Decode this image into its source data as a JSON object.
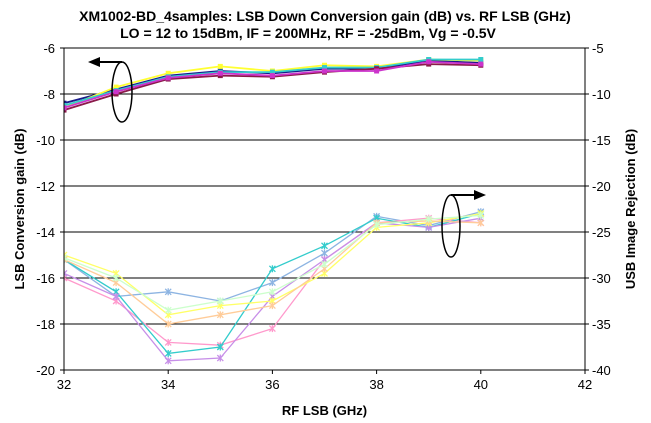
{
  "chart_data": {
    "type": "line",
    "title": "XM1002-BD_4samples: LSB Down Conversion gain (dB) vs. RF LSB (GHz)",
    "subtitle": "LO = 12 to 15dBm, IF = 200MHz, RF  = -25dBm, Vg = -0.5V",
    "xlabel": "RF LSB (GHz)",
    "ylabel": "LSB Conversion gain (dB)",
    "y2label": "USB Image Rejection (dB)",
    "xlim": [
      32,
      42
    ],
    "ylim": [
      -20,
      -6
    ],
    "y2lim": [
      -40,
      -5
    ],
    "x_ticks": [
      32,
      34,
      36,
      38,
      40,
      42
    ],
    "y_ticks": [
      -6,
      -8,
      -10,
      -12,
      -14,
      -16,
      -18,
      -20
    ],
    "y2_ticks": [
      -5,
      -10,
      -15,
      -20,
      -25,
      -30,
      -35,
      -40
    ],
    "grid": "horizontal",
    "gain_series": [
      {
        "axis": "left",
        "color": "#1a1a8c",
        "x": [
          32,
          33,
          34,
          35,
          36,
          37,
          38,
          39,
          40
        ],
        "y": [
          -8.4,
          -7.8,
          -7.2,
          -7.0,
          -7.1,
          -6.9,
          -6.9,
          -6.55,
          -6.65
        ]
      },
      {
        "axis": "left",
        "color": "#ffff33",
        "x": [
          32,
          33,
          34,
          35,
          36,
          37,
          38,
          39,
          40
        ],
        "y": [
          -8.6,
          -7.7,
          -7.1,
          -6.8,
          -7.0,
          -6.75,
          -6.8,
          -6.5,
          -6.55
        ]
      },
      {
        "axis": "left",
        "color": "#33cccc",
        "x": [
          32,
          33,
          34,
          35,
          36,
          37,
          38,
          39,
          40
        ],
        "y": [
          -8.5,
          -7.85,
          -7.25,
          -7.05,
          -7.05,
          -6.85,
          -6.85,
          -6.5,
          -6.5
        ]
      },
      {
        "axis": "left",
        "color": "#8b1a4a",
        "x": [
          32,
          33,
          34,
          35,
          36,
          37,
          38,
          39,
          40
        ],
        "y": [
          -8.7,
          -8.0,
          -7.35,
          -7.2,
          -7.25,
          -7.05,
          -6.9,
          -6.7,
          -6.75
        ]
      },
      {
        "axis": "left",
        "color": "#cc33cc",
        "x": [
          32,
          33,
          34,
          35,
          36,
          37,
          38,
          39,
          40
        ],
        "y": [
          -8.6,
          -7.9,
          -7.3,
          -7.1,
          -7.2,
          -7.0,
          -7.0,
          -6.6,
          -6.7
        ]
      }
    ],
    "rejection_series": [
      {
        "axis": "right",
        "color": "#8db4e2",
        "x": [
          32,
          33,
          34,
          35,
          36,
          37,
          38,
          39,
          40
        ],
        "y": [
          -28.0,
          -32.0,
          -31.5,
          -32.5,
          -30.5,
          -27.3,
          -23.3,
          -24.3,
          -22.8
        ]
      },
      {
        "axis": "right",
        "color": "#ff99cc",
        "x": [
          32,
          33,
          34,
          35,
          36,
          37,
          38,
          39,
          40
        ],
        "y": [
          -30.0,
          -32.5,
          -37.0,
          -37.3,
          -35.5,
          -28.0,
          -24.0,
          -23.5,
          -24.0
        ]
      },
      {
        "axis": "right",
        "color": "#33cccc",
        "x": [
          32,
          33,
          34,
          35,
          36,
          37,
          38,
          39,
          40
        ],
        "y": [
          -28.0,
          -31.5,
          -38.2,
          -37.5,
          -29.0,
          -26.5,
          -23.5,
          -24.5,
          -23.0
        ]
      },
      {
        "axis": "right",
        "color": "#c78fe8",
        "x": [
          32,
          33,
          34,
          35,
          36,
          37,
          38,
          39,
          40
        ],
        "y": [
          -29.5,
          -32.0,
          -39.0,
          -38.7,
          -32.0,
          -28.0,
          -24.0,
          -24.5,
          -23.5
        ]
      },
      {
        "axis": "right",
        "color": "#ffff66",
        "x": [
          32,
          33,
          34,
          35,
          36,
          37,
          38,
          39,
          40
        ],
        "y": [
          -27.5,
          -29.5,
          -34.0,
          -33.0,
          -32.5,
          -29.5,
          -24.5,
          -24.0,
          -23.0
        ]
      },
      {
        "axis": "right",
        "color": "#ffcc99",
        "x": [
          32,
          33,
          34,
          35,
          36,
          37,
          38,
          39,
          40
        ],
        "y": [
          -28.0,
          -30.5,
          -35.0,
          -34.0,
          -33.0,
          -29.0,
          -24.0,
          -23.8,
          -24.0
        ]
      },
      {
        "axis": "right",
        "color": "#ccffcc",
        "x": [
          32,
          33,
          34,
          35,
          36,
          37,
          38,
          39,
          40
        ],
        "y": [
          -27.8,
          -30.0,
          -33.5,
          -32.5,
          -31.5,
          -28.5,
          -24.2,
          -23.6,
          -23.2
        ]
      }
    ],
    "annotations": [
      {
        "type": "ellipse-arrow",
        "points_to": "left axis",
        "near": "gain curves around x=33"
      },
      {
        "type": "ellipse-arrow",
        "points_to": "right axis",
        "near": "rejection curves around x=39"
      }
    ]
  }
}
